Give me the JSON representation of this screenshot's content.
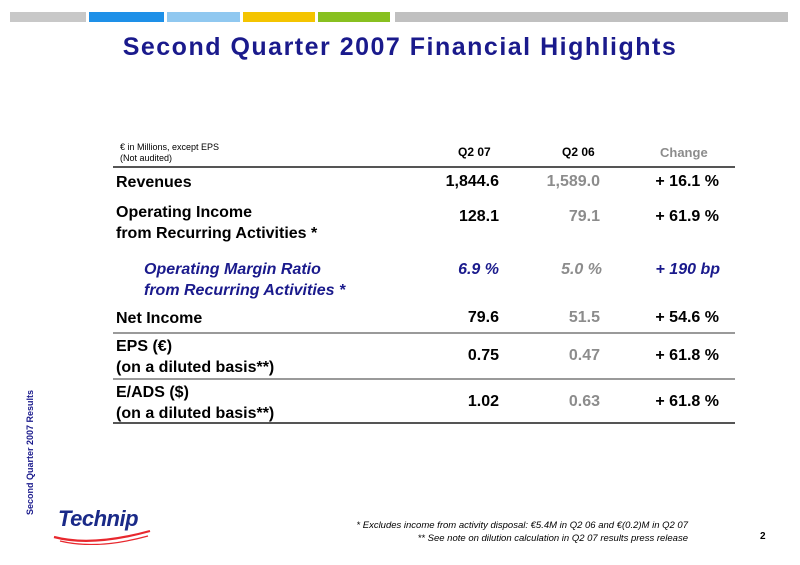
{
  "header_bar_colors": [
    "#c8c8c8",
    "#1e90e8",
    "#90c8f0",
    "#f4c400",
    "#88c020",
    "#c0c0c0"
  ],
  "title": "Second Quarter 2007 Financial Highlights",
  "side_label": "Second Quarter 2007 Results",
  "table": {
    "note_line1": "€ in Millions, except EPS",
    "note_line2": "(Not audited)",
    "col_q207": "Q2 07",
    "col_q206": "Q2 06",
    "col_change": "Change",
    "rows": [
      {
        "label1": "Revenues",
        "label2": "",
        "q207": "1,844.6",
        "q206": "1,589.0",
        "change": "+ 16.1 %"
      },
      {
        "label1": "Operating Income",
        "label2": "from Recurring Activities *",
        "q207": "128.1",
        "q206": "79.1",
        "change": "+ 61.9 %"
      },
      {
        "label1": "Operating Margin Ratio",
        "label2": "from Recurring Activities *",
        "q207": "6.9 %",
        "q206": "5.0 %",
        "change": "+ 190 bp"
      },
      {
        "label1": "Net Income",
        "label2": "",
        "q207": "79.6",
        "q206": "51.5",
        "change": "+ 54.6 %"
      },
      {
        "label1": "EPS (€)",
        "label2": "(on a diluted basis**)",
        "q207": "0.75",
        "q206": "0.47",
        "change": "+ 61.8 %"
      },
      {
        "label1": "E/ADS ($)",
        "label2": "(on a diluted basis**)",
        "q207": "1.02",
        "q206": "0.63",
        "change": "+ 61.8 %"
      }
    ]
  },
  "logo_text": "Technip",
  "footnote1": "* Excludes income from activity disposal: €5.4M in Q2 06 and €(0.2)M in Q2 07",
  "footnote2": "** See note on dilution calculation in Q2 07 results press release",
  "page_number": "2"
}
